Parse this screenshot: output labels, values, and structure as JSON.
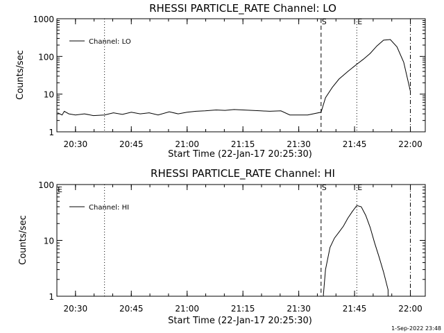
{
  "chart_data": [
    {
      "type": "line",
      "title": "RHESSI PARTICLE_RATE Channel: LO",
      "xlabel": "Start Time (22-Jan-17 20:25:30)",
      "ylabel": "Counts/sec",
      "yscale": "log",
      "ylim": [
        1,
        1000
      ],
      "xlim": [
        20.4167,
        22.0667
      ],
      "xticks": [
        20.5,
        20.75,
        21.0,
        21.25,
        21.5,
        21.75,
        22.0
      ],
      "xtick_labels": [
        "20:30",
        "20:45",
        "21:00",
        "21:15",
        "21:30",
        "21:45",
        "22:00"
      ],
      "yticks": [
        1,
        10,
        100,
        1000
      ],
      "ytick_labels": [
        "1",
        "10",
        "100",
        "1000"
      ],
      "legend": {
        "placement": "top-left",
        "entries": [
          "Channel: LO"
        ]
      },
      "series": [
        {
          "name": "Channel: LO",
          "x": [
            20.42,
            20.44,
            20.45,
            20.47,
            20.5,
            20.54,
            20.58,
            20.63,
            20.67,
            20.71,
            20.75,
            20.79,
            20.83,
            20.87,
            20.92,
            20.96,
            21.0,
            21.04,
            21.08,
            21.13,
            21.17,
            21.21,
            21.25,
            21.29,
            21.33,
            21.37,
            21.42,
            21.46,
            21.5,
            21.54,
            21.6,
            21.62,
            21.65,
            21.68,
            21.72,
            21.76,
            21.79,
            21.82,
            21.85,
            21.88,
            21.91,
            21.94,
            21.97,
            22.0
          ],
          "y": [
            3.2,
            2.8,
            3.5,
            3.0,
            2.8,
            3.0,
            2.7,
            2.8,
            3.2,
            2.9,
            3.3,
            3.0,
            3.2,
            2.8,
            3.4,
            3.0,
            3.3,
            3.5,
            3.6,
            3.8,
            3.7,
            3.9,
            3.8,
            3.7,
            3.6,
            3.5,
            3.6,
            2.8,
            2.8,
            2.8,
            3.3,
            8,
            15,
            25,
            40,
            62,
            85,
            120,
            190,
            270,
            280,
            180,
            70,
            12
          ]
        }
      ],
      "annotations": [
        {
          "type": "dotted",
          "x": 20.63
        },
        {
          "type": "dashed",
          "x": 21.6,
          "label": "S"
        },
        {
          "type": "dotted",
          "x": 21.76,
          "label": "E"
        },
        {
          "type": "dash-dot",
          "x": 22.0
        }
      ]
    },
    {
      "type": "line",
      "title": "RHESSI PARTICLE_RATE Channel: HI",
      "xlabel": "Start Time (22-Jan-17 20:25:30)",
      "ylabel": "Counts/sec",
      "yscale": "log",
      "ylim": [
        1,
        100
      ],
      "xlim": [
        20.4167,
        22.0667
      ],
      "xticks": [
        20.5,
        20.75,
        21.0,
        21.25,
        21.5,
        21.75,
        22.0
      ],
      "xtick_labels": [
        "20:30",
        "20:45",
        "21:00",
        "21:15",
        "21:30",
        "21:45",
        "22:00"
      ],
      "yticks": [
        1,
        10,
        100
      ],
      "ytick_labels": [
        "1",
        "10",
        "100"
      ],
      "legend": {
        "placement": "top-left",
        "entries": [
          "Channel: HI"
        ]
      },
      "series": [
        {
          "name": "Channel: HI",
          "x": [
            21.61,
            21.62,
            21.64,
            21.66,
            21.68,
            21.7,
            21.72,
            21.74,
            21.76,
            21.78,
            21.8,
            21.82,
            21.84,
            21.86,
            21.88,
            21.9,
            21.9
          ],
          "y": [
            1.0,
            3.0,
            7.5,
            11,
            14,
            18,
            25,
            33,
            42,
            40,
            28,
            17,
            9.0,
            5.0,
            2.7,
            1.3,
            1.0
          ]
        }
      ],
      "annotations": [
        {
          "type": "dotted",
          "x": 20.63
        },
        {
          "type": "dashed",
          "x": 21.6,
          "label": "S"
        },
        {
          "type": "dotted",
          "x": 21.76,
          "label": "E"
        },
        {
          "type": "dash-dot",
          "x": 22.0
        },
        {
          "type": "text",
          "label": "E",
          "position": "left"
        }
      ]
    }
  ],
  "timestamp": "1-Sep-2022 23:48"
}
